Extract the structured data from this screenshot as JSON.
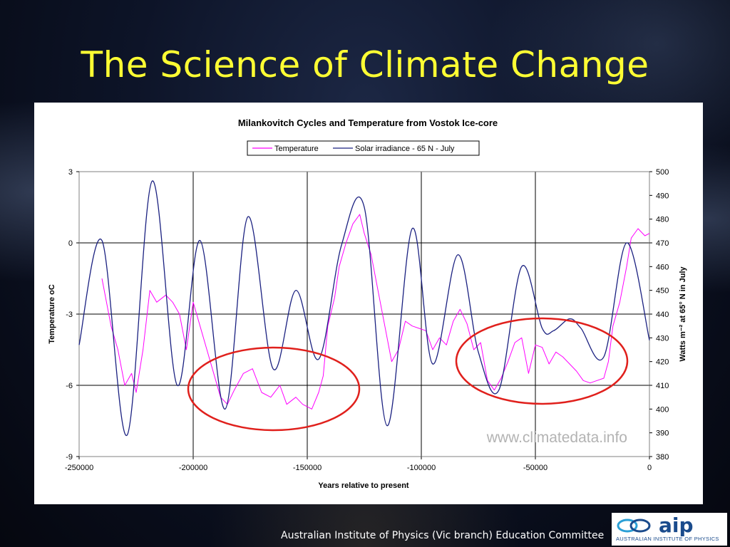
{
  "slide": {
    "title": "The Science of Climate Change",
    "footer": "Australian Institute of Physics (Vic branch) Education Committee"
  },
  "logo": {
    "word": "aip",
    "subtitle": "AUSTRALIAN INSTITUTE OF PHYSICS",
    "icon": "aip-logo-icon"
  },
  "chart_data": {
    "type": "line",
    "title": "Milankovitch Cycles and Temperature from Vostok Ice-core",
    "xlabel": "Years relative to present",
    "ylabel_left": "Temperature oC",
    "ylabel_right": "Watts m⁻² at 65° N in July",
    "watermark": "www.climatedata.info",
    "xlim": [
      -250000,
      0
    ],
    "ylim_left": [
      -9,
      3
    ],
    "ylim_right": [
      380,
      500
    ],
    "x_ticks": [
      "-250000",
      "-200000",
      "-150000",
      "-100000",
      "-50000",
      "0"
    ],
    "y_left_ticks": [
      "3",
      "0",
      "-3",
      "-6",
      "-9"
    ],
    "y_right_ticks": [
      "500",
      "490",
      "480",
      "470",
      "460",
      "450",
      "440",
      "430",
      "420",
      "410",
      "400",
      "390",
      "380"
    ],
    "grid": true,
    "legend_position": "top-center",
    "series": [
      {
        "name": "Temperature",
        "color": "#ff00ff",
        "axis": "left",
        "x": [
          -240000,
          -236000,
          -233000,
          -230000,
          -227000,
          -225000,
          -222000,
          -219000,
          -216000,
          -212000,
          -209000,
          -206000,
          -203000,
          -200000,
          -197000,
          -194000,
          -191000,
          -188000,
          -185000,
          -182000,
          -178000,
          -174000,
          -170000,
          -166000,
          -162000,
          -159000,
          -155000,
          -152000,
          -148000,
          -145000,
          -143000,
          -141000,
          -138000,
          -136000,
          -133000,
          -130000,
          -127000,
          -125000,
          -122000,
          -119000,
          -116000,
          -113000,
          -110000,
          -107000,
          -104000,
          -101000,
          -98000,
          -95000,
          -92000,
          -89000,
          -86000,
          -83000,
          -80000,
          -77000,
          -74000,
          -71000,
          -68000,
          -65000,
          -62000,
          -59000,
          -56000,
          -53000,
          -50000,
          -47000,
          -44000,
          -41000,
          -38000,
          -35000,
          -32000,
          -29000,
          -26000,
          -23000,
          -20000,
          -18000,
          -16000,
          -13000,
          -10000,
          -8000,
          -5000,
          -2000,
          0
        ],
        "y": [
          -1.5,
          -3.5,
          -4.5,
          -6.0,
          -5.5,
          -6.3,
          -4.5,
          -2.0,
          -2.5,
          -2.2,
          -2.5,
          -3.0,
          -4.5,
          -2.5,
          -3.5,
          -4.5,
          -5.5,
          -6.5,
          -6.8,
          -6.2,
          -5.5,
          -5.3,
          -6.3,
          -6.5,
          -6.0,
          -6.8,
          -6.5,
          -6.8,
          -7.0,
          -6.3,
          -5.6,
          -3.5,
          -2.3,
          -1.0,
          0.0,
          0.8,
          1.2,
          0.4,
          -0.5,
          -2.0,
          -3.5,
          -5.0,
          -4.5,
          -3.3,
          -3.5,
          -3.6,
          -3.7,
          -4.5,
          -4.0,
          -4.3,
          -3.3,
          -2.8,
          -3.4,
          -4.5,
          -4.2,
          -5.8,
          -6.2,
          -5.7,
          -5.0,
          -4.2,
          -4.0,
          -5.5,
          -4.3,
          -4.4,
          -5.1,
          -4.6,
          -4.8,
          -5.1,
          -5.4,
          -5.8,
          -5.9,
          -5.8,
          -5.7,
          -5.0,
          -3.5,
          -2.5,
          -1.0,
          0.2,
          0.6,
          0.3,
          0.4
        ]
      },
      {
        "name": "Solar irradiance - 65 N - July",
        "color": "#1a2080",
        "axis": "right",
        "x": [
          -250000,
          -240000,
          -229000,
          -218000,
          -207000,
          -197000,
          -186000,
          -176000,
          -165000,
          -155000,
          -145000,
          -135000,
          -125000,
          -115000,
          -104000,
          -95000,
          -84000,
          -75000,
          -66000,
          -56000,
          -47000,
          -42000,
          -35000,
          -30000,
          -20000,
          -10000,
          0
        ],
        "y": [
          427,
          471,
          389,
          496,
          410,
          471,
          400,
          481,
          417,
          450,
          421,
          469,
          485,
          393,
          476,
          419,
          465,
          424,
          408,
          460,
          434,
          433,
          438,
          434,
          422,
          470,
          429
        ]
      }
    ]
  }
}
